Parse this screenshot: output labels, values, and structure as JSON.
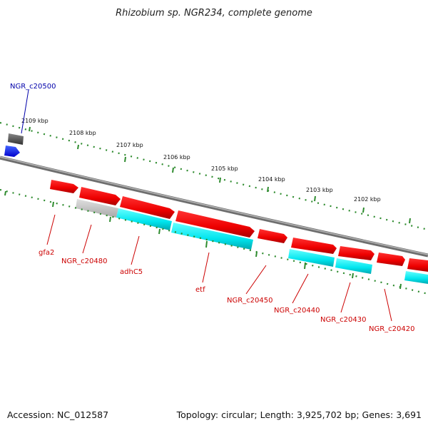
{
  "title": "Rhizobium sp. NGR234, complete genome",
  "footer": {
    "accession": "Accession: NC_012587",
    "summary": "Topology: circular; Length: 3,925,702 bp; Genes: 3,691"
  },
  "scale_labels": [
    "2109 kbp",
    "2108 kbp",
    "2107 kbp",
    "2106 kbp",
    "2105 kbp",
    "2104 kbp",
    "2103 kbp",
    "2102 kbp"
  ],
  "gene_labels": [
    {
      "text": "NGR_c20500",
      "color": "#0000aa"
    },
    {
      "text": "gfa2",
      "color": "#cc0000"
    },
    {
      "text": "NGR_c20480",
      "color": "#cc0000"
    },
    {
      "text": "adhC5",
      "color": "#cc0000"
    },
    {
      "text": "etf",
      "color": "#cc0000"
    },
    {
      "text": "NGR_c20450",
      "color": "#cc0000"
    },
    {
      "text": "NGR_c20440",
      "color": "#cc0000"
    },
    {
      "text": "NGR_c20430",
      "color": "#cc0000"
    },
    {
      "text": "NGR_c20420",
      "color": "#cc0000"
    }
  ],
  "colors": {
    "gene": "#ff0000",
    "cds": "#00e5ee",
    "pseudo": "#c8c8c8",
    "highlight_gene": "#0000ff",
    "backbone": "#808080",
    "ticks": "#006400"
  }
}
